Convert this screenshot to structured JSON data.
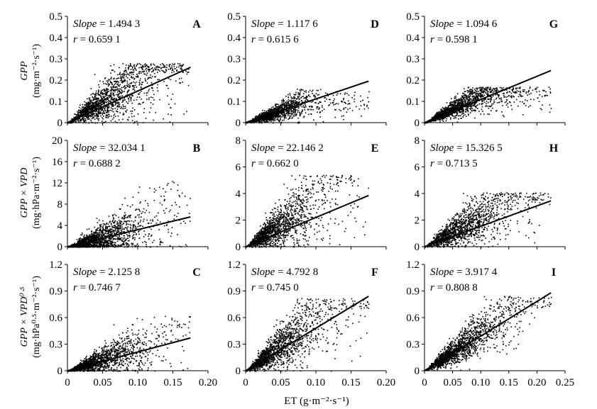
{
  "figure": {
    "x_label": "ET (g·m⁻²·s⁻¹)",
    "row_labels": [
      {
        "var": "GPP",
        "unit": "(mg·m⁻²·s⁻¹)"
      },
      {
        "var": "GPP × VPD",
        "unit": "(mg·hPa·m⁻²·s⁻¹)"
      },
      {
        "var": "GPP × VPD⁰ᐧ⁵",
        "unit": "(mg·hPa⁰ᐧ⁵·m⁻²·s⁻¹)"
      }
    ]
  },
  "chart_data": [
    {
      "type": "scatter",
      "panel": "A",
      "slope_label": "Slope",
      "slope": "1.494 3",
      "r_label": "r",
      "r": "0.659 1",
      "xlim": [
        0,
        0.2
      ],
      "ylim": [
        0,
        0.5
      ],
      "x_ticks": [
        "0",
        "0.05",
        "0.10",
        "0.15",
        "0.20"
      ],
      "y_ticks": [
        "0",
        "0.1",
        "0.2",
        "0.3",
        "0.4",
        "0.5"
      ],
      "fit_line": {
        "x": [
          0,
          0.175
        ],
        "y": [
          0,
          0.26
        ]
      },
      "cloud": {
        "n": 1500,
        "x_range": [
          0,
          0.175
        ],
        "x_center": 0.06,
        "y_max": 0.28,
        "y_scale": 2.0,
        "spread": 0.45
      }
    },
    {
      "type": "scatter",
      "panel": "B",
      "slope_label": "Slope",
      "slope": "32.034 1",
      "r_label": "r",
      "r": "0.688 2",
      "xlim": [
        0,
        0.2
      ],
      "ylim": [
        0,
        20
      ],
      "x_ticks": [
        "0",
        "0.05",
        "0.10",
        "0.15",
        "0.20"
      ],
      "y_ticks": [
        "0",
        "4",
        "8",
        "12",
        "16",
        "20"
      ],
      "fit_line": {
        "x": [
          0,
          0.175
        ],
        "y": [
          0,
          5.6
        ]
      },
      "cloud": {
        "n": 1500,
        "x_range": [
          0,
          0.175
        ],
        "x_center": 0.05,
        "y_max": 13,
        "y_scale": 36,
        "spread": 0.8
      }
    },
    {
      "type": "scatter",
      "panel": "C",
      "slope_label": "Slope",
      "slope": "2.125 8",
      "r_label": "r",
      "r": "0.746 7",
      "xlim": [
        0,
        0.2
      ],
      "ylim": [
        0,
        1.2
      ],
      "x_ticks": [
        "0",
        "0.05",
        "0.10",
        "0.15",
        "0.20"
      ],
      "y_ticks": [
        "0",
        "0.3",
        "0.6",
        "0.9",
        "1.2"
      ],
      "fit_line": {
        "x": [
          0,
          0.175
        ],
        "y": [
          0,
          0.37
        ]
      },
      "cloud": {
        "n": 1500,
        "x_range": [
          0,
          0.175
        ],
        "x_center": 0.05,
        "y_max": 0.62,
        "y_scale": 2.6,
        "spread": 0.55
      }
    },
    {
      "type": "scatter",
      "panel": "D",
      "slope_label": "Slope",
      "slope": "1.117 6",
      "r_label": "r",
      "r": "0.615 6",
      "xlim": [
        0,
        0.2
      ],
      "ylim": [
        0,
        0.5
      ],
      "x_ticks": [
        "0",
        "0.05",
        "0.10",
        "0.15",
        "0.20"
      ],
      "y_ticks": [
        "0",
        "0.1",
        "0.2",
        "0.3",
        "0.4",
        "0.5"
      ],
      "fit_line": {
        "x": [
          0,
          0.175
        ],
        "y": [
          0,
          0.195
        ]
      },
      "cloud": {
        "n": 1500,
        "x_range": [
          0,
          0.175
        ],
        "x_center": 0.045,
        "y_max": 0.16,
        "y_scale": 1.2,
        "spread": 0.35,
        "cap": 0.11
      }
    },
    {
      "type": "scatter",
      "panel": "E",
      "slope_label": "Slope",
      "slope": "22.146 2",
      "r_label": "r",
      "r": "0.662 0",
      "xlim": [
        0,
        0.2
      ],
      "ylim": [
        0,
        8
      ],
      "x_ticks": [
        "0",
        "0.05",
        "0.10",
        "0.15",
        "0.20"
      ],
      "y_ticks": [
        "0",
        "2",
        "4",
        "6",
        "8"
      ],
      "fit_line": {
        "x": [
          0,
          0.175
        ],
        "y": [
          0,
          3.85
        ]
      },
      "cloud": {
        "n": 1500,
        "x_range": [
          0,
          0.175
        ],
        "x_center": 0.05,
        "y_max": 5.4,
        "y_scale": 34,
        "spread": 0.5
      }
    },
    {
      "type": "scatter",
      "panel": "F",
      "slope_label": "Slope",
      "slope": "4.792 8",
      "r_label": "r",
      "r": "0.745 0",
      "xlim": [
        0,
        0.2
      ],
      "ylim": [
        0,
        1.2
      ],
      "x_ticks": [
        "0",
        "0.05",
        "0.10",
        "0.15",
        "0.20"
      ],
      "y_ticks": [
        "0",
        "0.3",
        "0.6",
        "0.9",
        "1.2"
      ],
      "fit_line": {
        "x": [
          0,
          0.175
        ],
        "y": [
          0,
          0.84
        ]
      },
      "cloud": {
        "n": 1600,
        "x_range": [
          0,
          0.175
        ],
        "x_center": 0.05,
        "y_max": 0.82,
        "y_scale": 5.6,
        "spread": 0.4
      }
    },
    {
      "type": "scatter",
      "panel": "G",
      "slope_label": "Slope",
      "slope": "1.094 6",
      "r_label": "r",
      "r": "0.598 1",
      "xlim": [
        0,
        0.25
      ],
      "ylim": [
        0,
        0.5
      ],
      "x_ticks": [
        "0",
        "0.05",
        "0.10",
        "0.15",
        "0.20",
        "0.25"
      ],
      "y_ticks": [
        "0",
        "0.1",
        "0.2",
        "0.3",
        "0.4",
        "0.5"
      ],
      "fit_line": {
        "x": [
          0,
          0.225
        ],
        "y": [
          0,
          0.245
        ]
      },
      "cloud": {
        "n": 1500,
        "x_range": [
          0,
          0.225
        ],
        "x_center": 0.07,
        "y_max": 0.17,
        "y_scale": 1.3,
        "spread": 0.3,
        "cap": 0.155
      }
    },
    {
      "type": "scatter",
      "panel": "H",
      "slope_label": "Slope",
      "slope": "15.326 5",
      "r_label": "r",
      "r": "0.713 5",
      "xlim": [
        0,
        0.25
      ],
      "ylim": [
        0,
        8
      ],
      "x_ticks": [
        "0",
        "0.05",
        "0.10",
        "0.15",
        "0.20",
        "0.25"
      ],
      "y_ticks": [
        "0",
        "2",
        "4",
        "6",
        "8"
      ],
      "fit_line": {
        "x": [
          0,
          0.225
        ],
        "y": [
          0,
          3.45
        ]
      },
      "cloud": {
        "n": 1500,
        "x_range": [
          0,
          0.225
        ],
        "x_center": 0.07,
        "y_max": 4.1,
        "y_scale": 22,
        "spread": 0.45
      }
    },
    {
      "type": "scatter",
      "panel": "I",
      "slope_label": "Slope",
      "slope": "3.917 4",
      "r_label": "r",
      "r": "0.808 8",
      "xlim": [
        0,
        0.25
      ],
      "ylim": [
        0,
        1.2
      ],
      "x_ticks": [
        "0",
        "0.05",
        "0.10",
        "0.15",
        "0.20",
        "0.25"
      ],
      "y_ticks": [
        "0",
        "0.3",
        "0.6",
        "0.9",
        "1.2"
      ],
      "fit_line": {
        "x": [
          0,
          0.225
        ],
        "y": [
          0,
          0.88
        ]
      },
      "cloud": {
        "n": 1600,
        "x_range": [
          0,
          0.225
        ],
        "x_center": 0.07,
        "y_max": 0.85,
        "y_scale": 4.4,
        "spread": 0.3
      }
    }
  ]
}
